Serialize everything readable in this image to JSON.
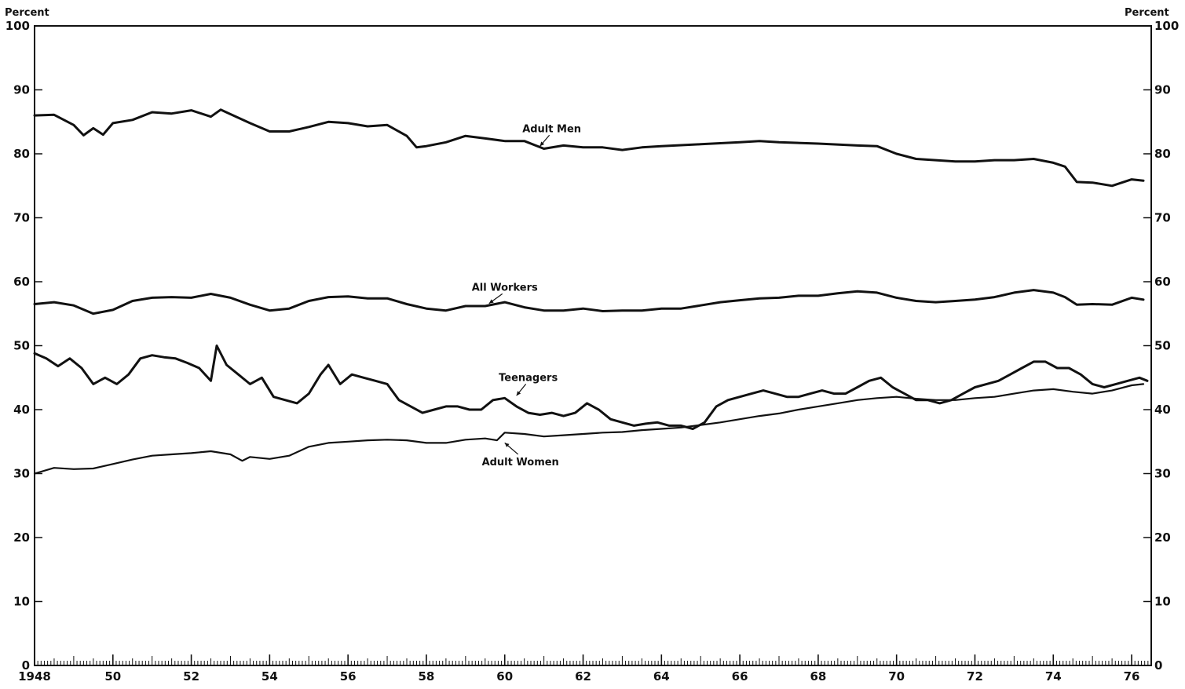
{
  "chart_data": {
    "type": "line",
    "ylabel_left": "Percent",
    "ylabel_right": "Percent",
    "ylim": [
      0,
      100
    ],
    "xlim": [
      1948,
      1976.5
    ],
    "y_ticks": [
      "0",
      "10",
      "20",
      "30",
      "40",
      "50",
      "60",
      "70",
      "80",
      "90",
      "100"
    ],
    "x_ticks": [
      {
        "year": 1948,
        "label": "1948"
      },
      {
        "year": 1950,
        "label": "50"
      },
      {
        "year": 1952,
        "label": "52"
      },
      {
        "year": 1954,
        "label": "54"
      },
      {
        "year": 1956,
        "label": "56"
      },
      {
        "year": 1958,
        "label": "58"
      },
      {
        "year": 1960,
        "label": "60"
      },
      {
        "year": 1962,
        "label": "62"
      },
      {
        "year": 1964,
        "label": "64"
      },
      {
        "year": 1966,
        "label": "66"
      },
      {
        "year": 1968,
        "label": "68"
      },
      {
        "year": 1970,
        "label": "70"
      },
      {
        "year": 1972,
        "label": "72"
      },
      {
        "year": 1974,
        "label": "74"
      },
      {
        "year": 1976,
        "label": "76"
      }
    ],
    "grid": false,
    "series": [
      {
        "name": "Adult Men",
        "label_at": [
          1961.2,
          83.4
        ],
        "arrow_to": [
          1960.9,
          81.2
        ],
        "x": [
          1948.0,
          1948.5,
          1949.0,
          1949.25,
          1949.5,
          1949.75,
          1950.0,
          1950.5,
          1951.0,
          1951.5,
          1952.0,
          1952.5,
          1952.75,
          1953.0,
          1953.5,
          1954.0,
          1954.5,
          1955.0,
          1955.5,
          1956.0,
          1956.5,
          1957.0,
          1957.5,
          1957.75,
          1958.0,
          1958.5,
          1959.0,
          1959.5,
          1960.0,
          1960.5,
          1961.0,
          1961.5,
          1962.0,
          1962.5,
          1963.0,
          1963.5,
          1964.0,
          1965.0,
          1966.0,
          1966.5,
          1967.0,
          1968.0,
          1969.0,
          1969.5,
          1970.0,
          1970.5,
          1971.0,
          1971.5,
          1972.0,
          1972.5,
          1973.0,
          1973.5,
          1974.0,
          1974.3,
          1974.6,
          1975.0,
          1975.5,
          1976.0,
          1976.3
        ],
        "y": [
          86.0,
          86.1,
          84.5,
          82.9,
          84.0,
          83.0,
          84.8,
          85.3,
          86.5,
          86.3,
          86.8,
          85.8,
          86.9,
          86.2,
          84.8,
          83.5,
          83.5,
          84.2,
          85.0,
          84.8,
          84.3,
          84.5,
          82.8,
          81.0,
          81.2,
          81.8,
          82.8,
          82.4,
          82.0,
          82.0,
          80.8,
          81.3,
          81.0,
          81.0,
          80.6,
          81.0,
          81.2,
          81.5,
          81.8,
          82.0,
          81.8,
          81.6,
          81.3,
          81.2,
          80.0,
          79.2,
          79.0,
          78.8,
          78.8,
          79.0,
          79.0,
          79.2,
          78.6,
          78.0,
          75.6,
          75.5,
          75.0,
          76.0,
          75.8
        ]
      },
      {
        "name": "All Workers",
        "label_at": [
          1960.0,
          58.6
        ],
        "arrow_to": [
          1959.6,
          56.6
        ],
        "x": [
          1948.0,
          1948.5,
          1949.0,
          1949.5,
          1950.0,
          1950.5,
          1951.0,
          1951.5,
          1952.0,
          1952.5,
          1953.0,
          1953.5,
          1954.0,
          1954.5,
          1955.0,
          1955.5,
          1956.0,
          1956.5,
          1957.0,
          1957.5,
          1958.0,
          1958.5,
          1959.0,
          1959.5,
          1960.0,
          1960.5,
          1961.0,
          1961.5,
          1962.0,
          1962.5,
          1963.0,
          1963.5,
          1964.0,
          1964.5,
          1965.0,
          1965.5,
          1966.0,
          1966.5,
          1967.0,
          1967.5,
          1968.0,
          1968.5,
          1969.0,
          1969.5,
          1970.0,
          1970.5,
          1971.0,
          1971.5,
          1972.0,
          1972.5,
          1973.0,
          1973.5,
          1974.0,
          1974.3,
          1974.6,
          1975.0,
          1975.5,
          1976.0,
          1976.3
        ],
        "y": [
          56.5,
          56.8,
          56.3,
          55.0,
          55.6,
          57.0,
          57.5,
          57.6,
          57.5,
          58.1,
          57.5,
          56.4,
          55.5,
          55.8,
          57.0,
          57.6,
          57.7,
          57.4,
          57.4,
          56.5,
          55.8,
          55.5,
          56.2,
          56.2,
          56.8,
          56.0,
          55.5,
          55.5,
          55.8,
          55.4,
          55.5,
          55.5,
          55.8,
          55.8,
          56.3,
          56.8,
          57.1,
          57.4,
          57.5,
          57.8,
          57.8,
          58.2,
          58.5,
          58.3,
          57.5,
          57.0,
          56.8,
          57.0,
          57.2,
          57.6,
          58.3,
          58.7,
          58.3,
          57.6,
          56.4,
          56.5,
          56.4,
          57.5,
          57.2
        ]
      },
      {
        "name": "Teenagers",
        "label_at": [
          1960.6,
          44.5
        ],
        "arrow_to": [
          1960.3,
          42.2
        ],
        "x": [
          1948.0,
          1948.3,
          1948.6,
          1948.9,
          1949.2,
          1949.5,
          1949.8,
          1950.1,
          1950.4,
          1950.7,
          1951.0,
          1951.3,
          1951.6,
          1951.9,
          1952.2,
          1952.5,
          1952.65,
          1952.9,
          1953.2,
          1953.5,
          1953.8,
          1954.1,
          1954.4,
          1954.7,
          1955.0,
          1955.3,
          1955.5,
          1955.8,
          1956.1,
          1956.4,
          1956.7,
          1957.0,
          1957.3,
          1957.6,
          1957.9,
          1958.2,
          1958.5,
          1958.8,
          1959.1,
          1959.4,
          1959.7,
          1960.0,
          1960.3,
          1960.6,
          1960.9,
          1961.2,
          1961.5,
          1961.8,
          1962.1,
          1962.4,
          1962.7,
          1963.0,
          1963.3,
          1963.6,
          1963.9,
          1964.2,
          1964.5,
          1964.8,
          1965.1,
          1965.4,
          1965.7,
          1966.0,
          1966.3,
          1966.6,
          1966.9,
          1967.2,
          1967.5,
          1967.8,
          1968.1,
          1968.4,
          1968.7,
          1969.0,
          1969.3,
          1969.6,
          1969.9,
          1970.2,
          1970.5,
          1970.8,
          1971.1,
          1971.4,
          1971.7,
          1972.0,
          1972.3,
          1972.6,
          1972.9,
          1973.2,
          1973.5,
          1973.8,
          1974.1,
          1974.4,
          1974.7,
          1975.0,
          1975.3,
          1975.6,
          1975.9,
          1976.2,
          1976.4
        ],
        "y": [
          48.8,
          48.0,
          46.8,
          48.0,
          46.5,
          44.0,
          45.0,
          44.0,
          45.5,
          48.0,
          48.5,
          48.2,
          48.0,
          47.3,
          46.5,
          44.5,
          50.0,
          47.0,
          45.5,
          44.0,
          45.0,
          42.0,
          41.5,
          41.0,
          42.5,
          45.5,
          47.0,
          44.0,
          45.5,
          45.0,
          44.5,
          44.0,
          41.5,
          40.5,
          39.5,
          40.0,
          40.5,
          40.5,
          40.0,
          40.0,
          41.5,
          41.8,
          40.5,
          39.5,
          39.2,
          39.5,
          39.0,
          39.5,
          41.0,
          40.0,
          38.5,
          38.0,
          37.5,
          37.8,
          38.0,
          37.5,
          37.5,
          37.0,
          38.0,
          40.5,
          41.5,
          42.0,
          42.5,
          43.0,
          42.5,
          42.0,
          42.0,
          42.5,
          43.0,
          42.5,
          42.5,
          43.5,
          44.5,
          45.0,
          43.5,
          42.5,
          41.5,
          41.5,
          41.0,
          41.5,
          42.5,
          43.5,
          44.0,
          44.5,
          45.5,
          46.5,
          47.5,
          47.5,
          46.5,
          46.5,
          45.5,
          44.0,
          43.5,
          44.0,
          44.5,
          45.0,
          44.5
        ]
      },
      {
        "name": "Adult Women",
        "label_at": [
          1960.4,
          31.3
        ],
        "arrow_to": [
          1960.0,
          34.8
        ],
        "x": [
          1948.0,
          1948.5,
          1949.0,
          1949.5,
          1950.0,
          1950.5,
          1951.0,
          1951.5,
          1952.0,
          1952.5,
          1953.0,
          1953.3,
          1953.5,
          1954.0,
          1954.5,
          1955.0,
          1955.5,
          1956.0,
          1956.5,
          1957.0,
          1957.5,
          1958.0,
          1958.5,
          1959.0,
          1959.5,
          1959.8,
          1960.0,
          1960.5,
          1961.0,
          1961.5,
          1962.0,
          1962.5,
          1963.0,
          1963.5,
          1964.0,
          1964.5,
          1965.0,
          1965.5,
          1966.0,
          1966.5,
          1967.0,
          1967.5,
          1968.0,
          1968.5,
          1969.0,
          1969.5,
          1970.0,
          1970.5,
          1971.0,
          1971.5,
          1972.0,
          1972.5,
          1973.0,
          1973.5,
          1974.0,
          1974.5,
          1975.0,
          1975.5,
          1976.0,
          1976.3
        ],
        "y": [
          30.0,
          30.9,
          30.7,
          30.8,
          31.5,
          32.2,
          32.8,
          33.0,
          33.2,
          33.5,
          33.0,
          32.0,
          32.6,
          32.3,
          32.8,
          34.2,
          34.8,
          35.0,
          35.2,
          35.3,
          35.2,
          34.8,
          34.8,
          35.3,
          35.5,
          35.2,
          36.4,
          36.2,
          35.8,
          36.0,
          36.2,
          36.4,
          36.5,
          36.8,
          37.0,
          37.2,
          37.6,
          38.0,
          38.5,
          39.0,
          39.4,
          40.0,
          40.5,
          41.0,
          41.5,
          41.8,
          42.0,
          41.7,
          41.5,
          41.5,
          41.8,
          42.0,
          42.5,
          43.0,
          43.2,
          42.8,
          42.5,
          43.0,
          43.8,
          44.0
        ]
      }
    ]
  }
}
